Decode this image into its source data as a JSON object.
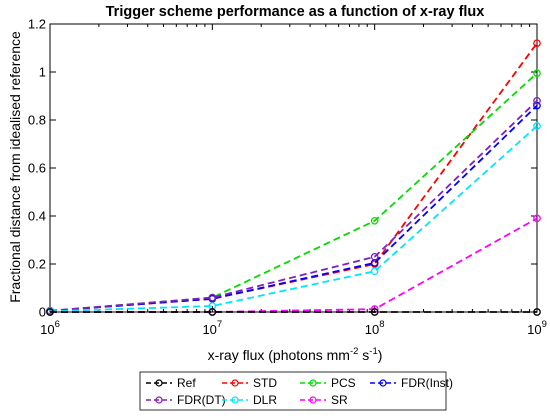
{
  "chart_data": {
    "type": "line",
    "title": "Trigger scheme performance as a function of x-ray flux",
    "xlabel": {
      "base": "x-ray flux (photons mm",
      "sup1": "-2",
      "mid": " s",
      "sup2": "-1",
      "end": ")"
    },
    "ylabel": "Fractional distance from idealised reference",
    "x_scale": "log",
    "x": [
      1000000,
      10000000,
      100000000,
      1000000000
    ],
    "xticks": [
      {
        "value": 1000000,
        "base": "10",
        "exp": "6"
      },
      {
        "value": 10000000,
        "base": "10",
        "exp": "7"
      },
      {
        "value": 100000000,
        "base": "10",
        "exp": "8"
      },
      {
        "value": 1000000000,
        "base": "10",
        "exp": "9"
      }
    ],
    "ylim": [
      0,
      1.2
    ],
    "yticks": [
      "0",
      "0.2",
      "0.4",
      "0.6",
      "0.8",
      "1",
      "1.2"
    ],
    "grid": false,
    "legend_position": "bottom",
    "series": [
      {
        "name": "Ref",
        "color": "#000000",
        "values": [
          0,
          0,
          0,
          0
        ]
      },
      {
        "name": "STD",
        "color": "#ff0000",
        "values": [
          0.005,
          0.055,
          0.2,
          1.12
        ]
      },
      {
        "name": "PCS",
        "color": "#00dd00",
        "values": [
          0.005,
          0.06,
          0.38,
          0.995
        ]
      },
      {
        "name": "FDR(Inst)",
        "color": "#0000ff",
        "values": [
          0.005,
          0.055,
          0.205,
          0.86
        ]
      },
      {
        "name": "FDR(DT)",
        "color": "#7f1fbf",
        "values": [
          0.005,
          0.06,
          0.23,
          0.88
        ]
      },
      {
        "name": "DLR",
        "color": "#00e5ff",
        "values": [
          0.003,
          0.025,
          0.17,
          0.775
        ]
      },
      {
        "name": "SR",
        "color": "#ff00ff",
        "values": [
          0,
          0,
          0.012,
          0.39
        ]
      }
    ]
  }
}
